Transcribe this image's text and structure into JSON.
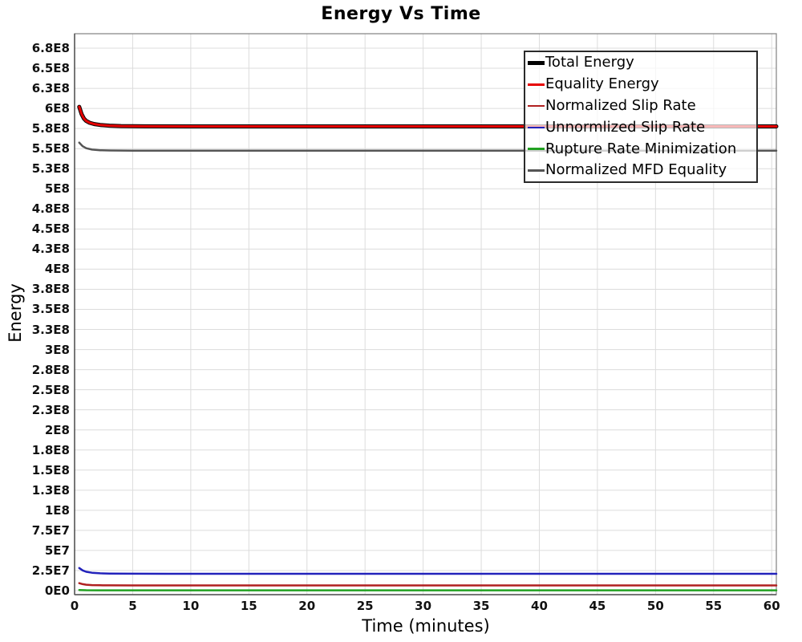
{
  "chart_data": {
    "type": "line",
    "title": "Energy Vs Time",
    "xlabel": "Time (minutes)",
    "ylabel": "Energy",
    "xlim": [
      0,
      60.4
    ],
    "ylim": [
      -5000000,
      693000000
    ],
    "grid": true,
    "legend_position": "top-right",
    "x_ticks": [
      0,
      5,
      10,
      15,
      20,
      25,
      30,
      35,
      40,
      45,
      50,
      55,
      60
    ],
    "y_ticks": [
      {
        "value": 0,
        "label": "0E0"
      },
      {
        "value": 25000000.0,
        "label": "2.5E7"
      },
      {
        "value": 50000000.0,
        "label": "5E7"
      },
      {
        "value": 75000000.0,
        "label": "7.5E7"
      },
      {
        "value": 100000000.0,
        "label": "1E8"
      },
      {
        "value": 125000000.0,
        "label": "1.3E8"
      },
      {
        "value": 150000000.0,
        "label": "1.5E8"
      },
      {
        "value": 175000000.0,
        "label": "1.8E8"
      },
      {
        "value": 200000000.0,
        "label": "2E8"
      },
      {
        "value": 225000000.0,
        "label": "2.3E8"
      },
      {
        "value": 250000000.0,
        "label": "2.5E8"
      },
      {
        "value": 275000000.0,
        "label": "2.8E8"
      },
      {
        "value": 300000000.0,
        "label": "3E8"
      },
      {
        "value": 325000000.0,
        "label": "3.3E8"
      },
      {
        "value": 350000000.0,
        "label": "3.5E8"
      },
      {
        "value": 375000000.0,
        "label": "3.8E8"
      },
      {
        "value": 400000000.0,
        "label": "4E8"
      },
      {
        "value": 425000000.0,
        "label": "4.3E8"
      },
      {
        "value": 450000000.0,
        "label": "4.5E8"
      },
      {
        "value": 475000000.0,
        "label": "4.8E8"
      },
      {
        "value": 500000000.0,
        "label": "5E8"
      },
      {
        "value": 525000000.0,
        "label": "5.3E8"
      },
      {
        "value": 550000000.0,
        "label": "5.5E8"
      },
      {
        "value": 575000000.0,
        "label": "5.8E8"
      },
      {
        "value": 600000000.0,
        "label": "6E8"
      },
      {
        "value": 625000000.0,
        "label": "6.3E8"
      },
      {
        "value": 650000000.0,
        "label": "6.5E8"
      },
      {
        "value": 675000000.0,
        "label": "6.8E8"
      }
    ],
    "colors": {
      "grid": "#dcdcdc",
      "border": "#8a8a8a",
      "axis": "#555555"
    },
    "draw_order": [
      5,
      4,
      2,
      3,
      0,
      1
    ],
    "series": [
      {
        "name": "Total Energy",
        "color": "#000000",
        "width": 5,
        "x": [
          0.4,
          0.6,
          0.8,
          1.0,
          1.3,
          1.7,
          2.2,
          3,
          4,
          6,
          10,
          60.4
        ],
        "y": [
          602000000.0,
          593000000.0,
          587500000.0,
          584500000.0,
          582200000.0,
          580600000.0,
          579500000.0,
          578600000.0,
          578100000.0,
          577800000.0,
          577700000.0,
          577700000.0
        ]
      },
      {
        "name": "Equality Energy",
        "color": "#e60000",
        "width": 3,
        "x": [
          0.4,
          0.6,
          0.8,
          1.0,
          1.3,
          1.7,
          2.2,
          3,
          4,
          6,
          10,
          60.4
        ],
        "y": [
          602000000.0,
          593000000.0,
          587500000.0,
          584500000.0,
          582200000.0,
          580600000.0,
          579500000.0,
          578600000.0,
          578100000.0,
          577800000.0,
          577700000.0,
          577700000.0
        ]
      },
      {
        "name": "Normalized Slip Rate",
        "color": "#b02020",
        "width": 2.5,
        "x": [
          0.4,
          0.7,
          1.0,
          1.5,
          2.2,
          3,
          5,
          8,
          60.4
        ],
        "y": [
          9300000.0,
          8100000.0,
          7400000.0,
          6900000.0,
          6650000.0,
          6550000.0,
          6500000.0,
          6450000.0,
          6450000.0
        ]
      },
      {
        "name": "Unnormlized Slip Rate",
        "color": "#2222bb",
        "width": 2.5,
        "x": [
          0.4,
          0.7,
          1.0,
          1.5,
          2.2,
          3,
          5,
          8,
          60.4
        ],
        "y": [
          28200000.0,
          25200000.0,
          23500000.0,
          22300000.0,
          21600000.0,
          21300000.0,
          21100000.0,
          21000000.0,
          21000000.0
        ]
      },
      {
        "name": "Rupture Rate Minimization",
        "color": "#21a121",
        "width": 2.5,
        "x": [
          0.4,
          1.0,
          2,
          60.4
        ],
        "y": [
          800000.0,
          500000.0,
          400000.0,
          400000.0
        ]
      },
      {
        "name": "Normalized MFD Equality",
        "color": "#555555",
        "width": 2.5,
        "x": [
          0.4,
          0.7,
          1.0,
          1.5,
          2.2,
          3,
          5,
          8,
          60.4
        ],
        "y": [
          557500000.0,
          553000000.0,
          550500000.0,
          548800000.0,
          548000000.0,
          547700000.0,
          547500000.0,
          547400000.0,
          547400000.0
        ]
      }
    ]
  }
}
